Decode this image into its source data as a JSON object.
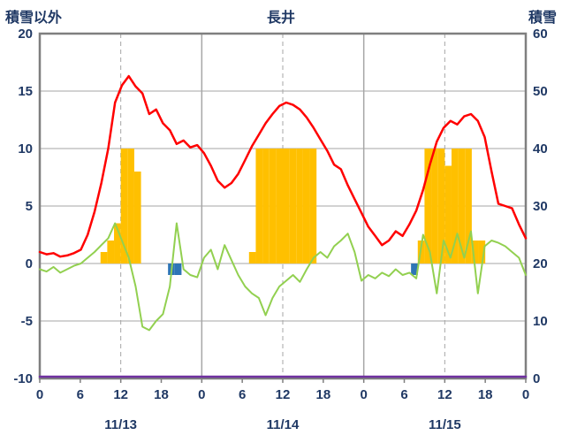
{
  "chart_data": {
    "type": "line",
    "title": "長井",
    "left_axis": {
      "label": "積雪以外",
      "min": -10,
      "max": 20,
      "ticks": [
        20,
        15,
        10,
        5,
        0,
        -5,
        -10
      ]
    },
    "right_axis": {
      "label": "積雪",
      "min": 0,
      "max": 60,
      "ticks": [
        60,
        50,
        40,
        30,
        20,
        10,
        0
      ]
    },
    "x_axis": {
      "hours_total": 72,
      "tick_hours": [
        0,
        6,
        12,
        18,
        24,
        30,
        36,
        42,
        48,
        54,
        60,
        66,
        72
      ],
      "tick_labels": [
        "0",
        "6",
        "12",
        "18",
        "0",
        "6",
        "12",
        "18",
        "0",
        "6",
        "12",
        "18",
        "0"
      ],
      "day_labels": [
        "11/13",
        "11/14",
        "11/15"
      ],
      "day_label_hours": [
        12,
        36,
        60
      ],
      "day_boundary_hours": [
        24,
        48
      ],
      "noon_dashed_hours": [
        12,
        36,
        60
      ]
    },
    "style": {
      "text_color": "#1F3864",
      "grid_color": "#A6A6A6",
      "border_color": "#7F7F7F",
      "background": "#FFFFFF"
    },
    "series": [
      {
        "name": "yellow-bars",
        "type": "bar",
        "axis": "left",
        "color": "#FFC000",
        "values": [
          0,
          0,
          0,
          0,
          0,
          0,
          0,
          0,
          0,
          1,
          2,
          3.5,
          10,
          10,
          8,
          0,
          0,
          0,
          0,
          0,
          0,
          0,
          0,
          0,
          0,
          0,
          0,
          0,
          0,
          0,
          0,
          1,
          10,
          10,
          10,
          10,
          10,
          10,
          10,
          10,
          10,
          0,
          0,
          0,
          0,
          0,
          0,
          0,
          0,
          0,
          0,
          0,
          0,
          0,
          0,
          0,
          2,
          10,
          10,
          10,
          8.5,
          10,
          10,
          10,
          2,
          2,
          0,
          0,
          0,
          0,
          0,
          0
        ]
      },
      {
        "name": "blue-bars",
        "type": "bar",
        "axis": "left",
        "color": "#2E75B6",
        "values": [
          0,
          0,
          0,
          0,
          0,
          0,
          0,
          0,
          0,
          0,
          0,
          0,
          0,
          0,
          0,
          0,
          0,
          0,
          0,
          -1,
          -1,
          0,
          0,
          0,
          0,
          0,
          0,
          0,
          0,
          0,
          0,
          0,
          0,
          0,
          0,
          0,
          0,
          0,
          0,
          0,
          0,
          0,
          0,
          0,
          0,
          0,
          0,
          0,
          0,
          0,
          0,
          0,
          0,
          0,
          0,
          -1,
          0,
          0,
          0,
          0,
          0,
          0,
          0,
          0,
          0,
          0,
          0,
          0,
          0,
          0,
          0,
          0
        ]
      },
      {
        "name": "purple-line",
        "type": "line",
        "axis": "right",
        "color": "#7030A0",
        "width": 2.5,
        "values": [
          0,
          0,
          0,
          0,
          0,
          0,
          0,
          0,
          0,
          0,
          0,
          0,
          0,
          0,
          0,
          0,
          0,
          0,
          0,
          0,
          0,
          0,
          0,
          0,
          0,
          0,
          0,
          0,
          0,
          0,
          0,
          0,
          0,
          0,
          0,
          0,
          0,
          0,
          0,
          0,
          0,
          0,
          0,
          0,
          0,
          0,
          0,
          0,
          0,
          0,
          0,
          0,
          0,
          0,
          0,
          0,
          0,
          0,
          0,
          0,
          0,
          0,
          0,
          0,
          0,
          0,
          0,
          0,
          0,
          0,
          0,
          0
        ]
      },
      {
        "name": "green-line",
        "type": "line",
        "axis": "left",
        "color": "#92D050",
        "width": 2,
        "values": [
          -0.5,
          -0.7,
          -0.3,
          -0.8,
          -0.5,
          -0.2,
          0.0,
          0.5,
          1.0,
          1.6,
          2.2,
          3.5,
          2.0,
          0.5,
          -2.0,
          -5.5,
          -5.8,
          -5.0,
          -4.4,
          -2.0,
          3.5,
          -0.5,
          -1.0,
          -1.2,
          0.5,
          1.2,
          -0.5,
          1.6,
          0.3,
          -1.0,
          -2.0,
          -2.6,
          -3.0,
          -4.5,
          -3.0,
          -2.0,
          -1.5,
          -1.0,
          -1.6,
          -0.5,
          0.5,
          1.0,
          0.5,
          1.5,
          2.0,
          2.6,
          1.0,
          -1.5,
          -1.0,
          -1.3,
          -0.8,
          -1.1,
          -0.5,
          -1.0,
          -0.8,
          -1.3,
          2.5,
          1.0,
          -2.6,
          2.0,
          0.5,
          2.6,
          0.5,
          2.8,
          -2.6,
          1.5,
          2.0,
          1.8,
          1.5,
          1.0,
          0.5,
          -1.0
        ]
      },
      {
        "name": "red-line",
        "type": "line",
        "axis": "left",
        "color": "#FF0000",
        "width": 2.5,
        "values": [
          1.0,
          0.8,
          0.9,
          0.6,
          0.7,
          0.9,
          1.2,
          2.5,
          4.5,
          7.0,
          10.0,
          14.0,
          15.5,
          16.3,
          15.4,
          14.8,
          13.0,
          13.4,
          12.2,
          11.6,
          10.4,
          10.7,
          10.1,
          10.3,
          9.6,
          8.5,
          7.2,
          6.6,
          7.0,
          7.8,
          9.0,
          10.2,
          11.2,
          12.2,
          13.0,
          13.7,
          14.0,
          13.8,
          13.4,
          12.7,
          11.8,
          10.8,
          9.8,
          8.6,
          8.2,
          6.8,
          5.6,
          4.4,
          3.2,
          2.4,
          1.6,
          2.0,
          2.8,
          2.4,
          3.4,
          4.6,
          6.4,
          8.6,
          10.6,
          11.8,
          12.4,
          12.1,
          12.8,
          13.0,
          12.4,
          11.0,
          8.0,
          5.2,
          5.0,
          4.8,
          3.4,
          2.2
        ]
      }
    ]
  }
}
